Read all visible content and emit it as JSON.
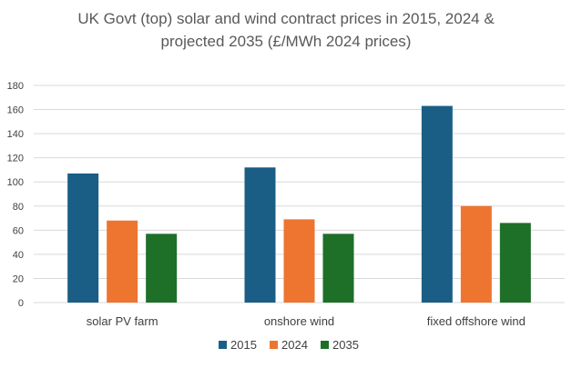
{
  "chart_data": {
    "type": "bar",
    "title_lines": [
      "UK Govt (top) solar and wind contract prices in 2015, 2024 &",
      "projected 2035 (£/MWh 2024 prices)"
    ],
    "categories": [
      "solar PV farm",
      "onshore wind",
      "fixed offshore wind"
    ],
    "series": [
      {
        "name": "2015",
        "color": "#1a5e85",
        "values": [
          107,
          112,
          163
        ]
      },
      {
        "name": "2024",
        "color": "#ed7530",
        "values": [
          68,
          69,
          80
        ]
      },
      {
        "name": "2035",
        "color": "#1e6f28",
        "values": [
          57,
          57,
          66
        ]
      }
    ],
    "ylim": [
      0,
      180
    ],
    "yticks": [
      0,
      20,
      40,
      60,
      80,
      100,
      120,
      140,
      160,
      180
    ],
    "grid": true,
    "legend": "bottom"
  }
}
